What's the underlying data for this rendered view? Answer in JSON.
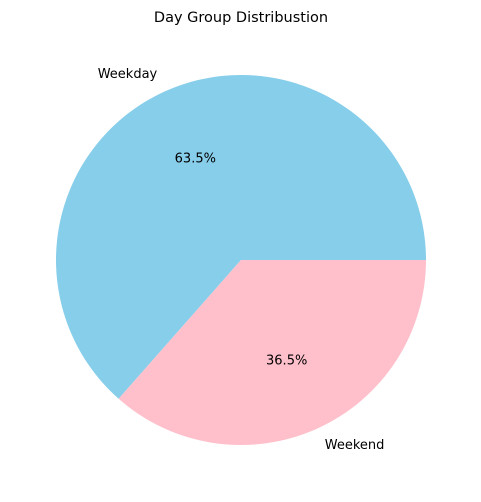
{
  "chart_data": {
    "type": "pie",
    "title": "Day Group Distribustion",
    "categories": [
      "Weekday",
      "Weekend"
    ],
    "values": [
      63.5,
      36.5
    ],
    "value_labels": [
      "63.5%",
      "36.5%"
    ],
    "colors": [
      "#87CEEB",
      "#FFC0CB"
    ],
    "start_angle_deg": 0,
    "direction": "counterclockwise",
    "legend": "none"
  }
}
